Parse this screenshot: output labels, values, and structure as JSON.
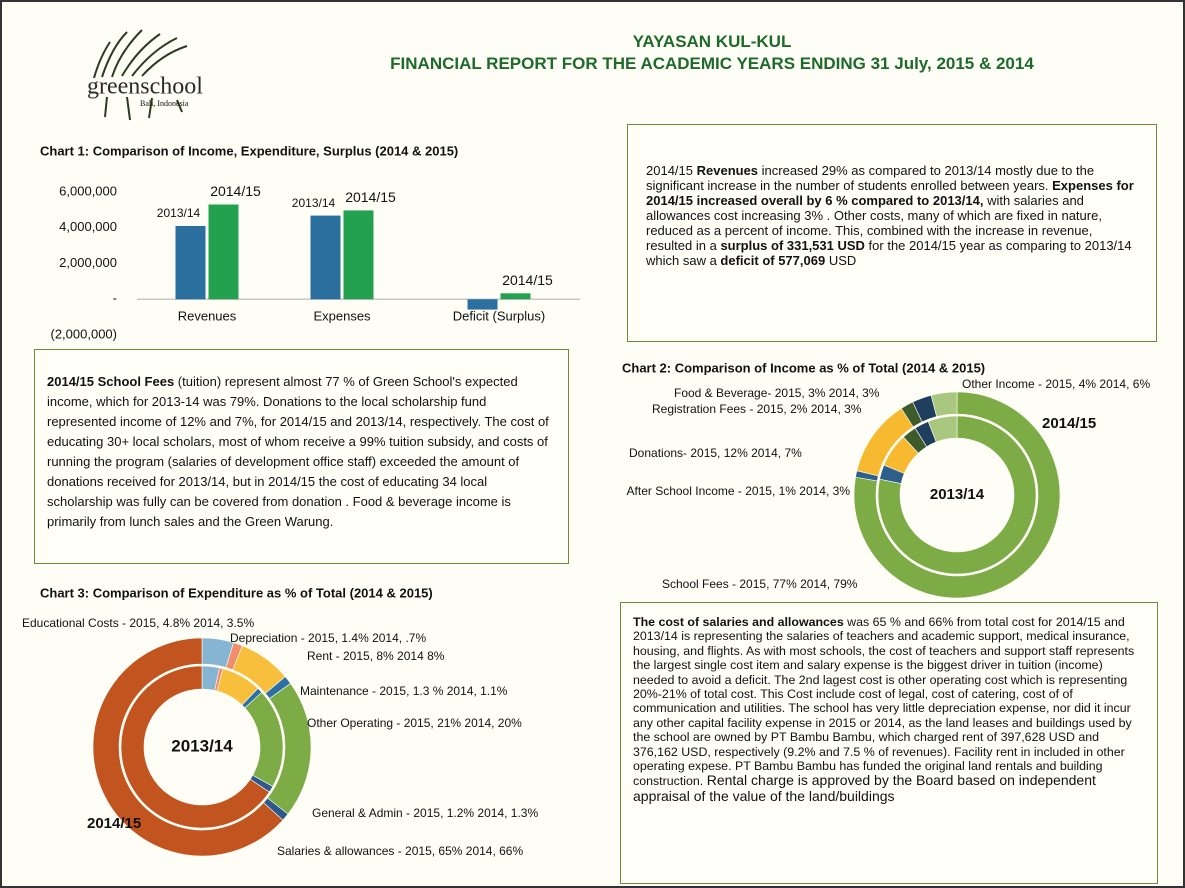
{
  "header": {
    "logo": {
      "name": "greenschool",
      "place": "Bali, Indonesia"
    },
    "title": "YAYASAN KUL-KUL",
    "subtitle": "FINANCIAL REPORT FOR THE ACADEMIC YEARS ENDING  31  July, 2015  & 2014"
  },
  "text_boxes": [
    {
      "segments": [
        "2014/15 ",
        "Revenues",
        " increased 29% as compared to 2013/14 mostly due to the significant increase in the number of students enrolled between years. ",
        "Expenses for 2014/15 increased overall by 6 % compared to 2013/14,",
        " with salaries and allowances cost increasing 3% . Other costs, many of which are fixed in nature, reduced as a percent of income. This, combined with the increase in revenue, resulted in a  ",
        "surplus of 331,531 USD",
        " for the 2014/15 year as comparing to 2013/14 which saw a ",
        "deficit of 577,069",
        " USD"
      ]
    },
    {
      "segments": [
        "2014/15 School Fees",
        " (tuition) represent almost 77 % of Green School's expected income,  which for 2013-14 was 79%.  Donations to the local scholarship fund represented income of 12% and 7%, for 2014/15 and 2013/14, respectively.  The cost of educating 30+ local scholars, most of whom receive a 99% tuition subsidy, and costs of running the program (salaries of development office staff) exceeded the amount of donations received for 2013/14, but  in 2014/15   the cost of educating 34 local scholarship   was fully can be covered from donation . Food & beverage income is primarily from lunch sales and the Green Warung."
      ]
    },
    {
      "segments": [
        "The cost of salaries and allowances",
        " was  65 % and 66% from total cost for 2014/15  and 2013/14 is representing the salaries of teachers and  academic support, medical insurance,  housing, and flights.  As with most schools, the cost of teachers and support staff represents the largest single cost item and salary expense is the biggest driver in tuition (income) needed to avoid a deficit.  The 2nd lagest cost  is other operating  cost  which is representing 20%-21% of total cost.  This Cost include cost of legal, cost of catering, cost of  of communication and utilities. The school has very little depreciation expense, nor did it incur any other capital facility expense in 2015 or 2014, as the land leases and buildings used by the school are owned by PT Bambu Bambu, which charged rent of 397,628 USD and 376,162 USD, respectively (9.2% and  7.5 % of revenues). Facility rent in included in other operating expese.  PT Bambu Bambu has funded the original land rentals and building construction. ",
        "Rental charge is approved by the Board based on independent appraisal of the value of the land/buildings"
      ]
    }
  ],
  "chart_data": [
    {
      "type": "bar",
      "title": "Chart 1:  Comparison of Income, Expenditure, Surplus (2014 & 2015)",
      "categories": [
        "Revenues",
        "Expenses",
        "Deficit (Surplus)"
      ],
      "series": [
        {
          "name": "2013/14",
          "color": "#2a6f9e",
          "values": [
            4100000,
            4680000,
            -577069
          ]
        },
        {
          "name": "2014/15",
          "color": "#23a14f",
          "values": [
            5300000,
            4970000,
            331531
          ]
        }
      ],
      "ylim": [
        -2000000,
        6000000
      ],
      "yticks": [
        {
          "value": -2000000,
          "label": "(2,000,000)"
        },
        {
          "value": 0,
          "label": "-"
        },
        {
          "value": 2000000,
          "label": "2,000,000"
        },
        {
          "value": 4000000,
          "label": "4,000,000"
        },
        {
          "value": 6000000,
          "label": "6,000,000"
        }
      ],
      "grid": false
    },
    {
      "type": "donut",
      "title": "Chart 2:  Comparison of Income as % of Total (2014 & 2015)",
      "categories": [
        "School Fees",
        "After School Income",
        "Donations",
        "Registration Fees",
        "Food & Beverage",
        "Other Income"
      ],
      "labels": [
        "School Fees - 2015, 77% 2014, 79%",
        "After School Income - 2015, 1% 2014, 3%",
        "Donations- 2015, 12% 2014, 7%",
        "Registration Fees - 2015, 2% 2014, 3%",
        "Food & Beverage- 2015, 3% 2014, 3%",
        "Other Income - 2015, 4% 2014, 6%"
      ],
      "colors": [
        "#7dac47",
        "#2d5f8a",
        "#f6b92f",
        "#3e5b2c",
        "#1f3d5d",
        "#a9c77e"
      ],
      "series": [
        {
          "name": "2014/15",
          "values": [
            77,
            1,
            12,
            2,
            3,
            4
          ]
        },
        {
          "name": "2013/14",
          "values": [
            79,
            3,
            7,
            3,
            3,
            6
          ]
        }
      ]
    },
    {
      "type": "donut",
      "title": "Chart 3:  Comparison of Expenditure as % of Total (2014 & 2015)",
      "categories": [
        "Educational Costs",
        "Depreciation",
        "Rent",
        "Maintenance",
        "Other Operating",
        "General & Admin",
        "Salaries & allowances"
      ],
      "labels": [
        "Educational Costs - 2015, 4.8% 2014, 3.5%",
        "Depreciation - 2015, 1.4% 2014, .7%",
        "Rent  - 2015, 8% 2014 8%",
        "Maintenance - 2015, 1.3 % 2014, 1.1%",
        "Other Operating - 2015, 21% 2014, 20%",
        "General & Admin - 2015, 1.2% 2014, 1.3%",
        "Salaries & allowances - 2015, 65% 2014, 66%"
      ],
      "colors": [
        "#86b5d3",
        "#ef8d6d",
        "#f7bf3b",
        "#2e6fa5",
        "#7dac47",
        "#2d5a8a",
        "#c1541f"
      ],
      "series": [
        {
          "name": "2014/15",
          "values": [
            4.8,
            1.4,
            8,
            1.3,
            21,
            1.2,
            65
          ]
        },
        {
          "name": "2013/14",
          "values": [
            3.5,
            0.7,
            8,
            1.1,
            20,
            1.3,
            66
          ]
        }
      ]
    }
  ]
}
